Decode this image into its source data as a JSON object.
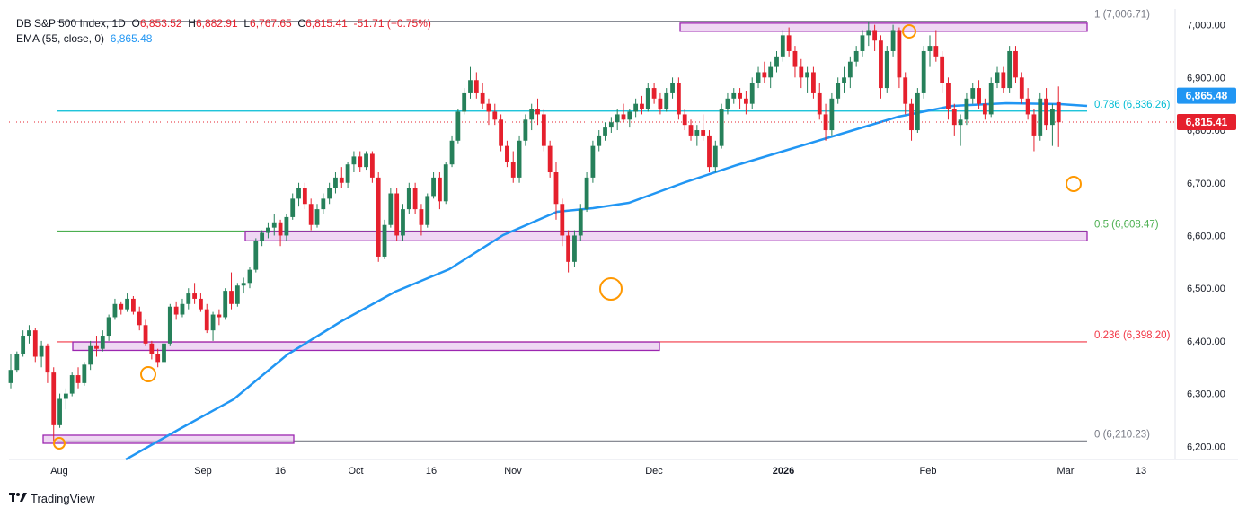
{
  "legend": {
    "symbol": "DB S&P 500 Index, 1D",
    "open_label": "O",
    "open": "6,853.52",
    "high_label": "H",
    "high": "6,882.91",
    "low_label": "L",
    "low": "6,767.65",
    "close_label": "C",
    "close": "6,815.41",
    "change": "-51.71 (−0.75%)",
    "ema_label": "EMA (55, close, 0)",
    "ema_value": "6,865.48"
  },
  "brand": {
    "name": "TradingView"
  },
  "colors": {
    "up": "#26805a",
    "down": "#e5202d",
    "ema": "#2196f3",
    "zone_fill": "#e8c8ee",
    "zone_stroke": "#9c27b0",
    "fib_0786": "#00bcd4",
    "fib_05": "#4caf50",
    "fib_0236": "#f23645",
    "fib_edge": "#787b86",
    "circle": "#ff9800"
  },
  "chart_data": {
    "type": "candlestick",
    "ylim": [
      6175,
      7030
    ],
    "y_ticks": [
      "6,200.00",
      "6,300.00",
      "6,400.00",
      "6,500.00",
      "6,600.00",
      "6,700.00",
      "6,800.00",
      "6,900.00",
      "7,000.00"
    ],
    "x_labels": [
      "Aug",
      "Sep",
      "16",
      "Oct",
      "16",
      "Nov",
      "Dec",
      "2026",
      "Feb",
      "Mar",
      "13"
    ],
    "current_price": {
      "value": 6815.41,
      "label": "6,815.41"
    },
    "ema": {
      "value": 6865.48,
      "label": "6,865.48"
    },
    "fib_levels": [
      {
        "ratio": 1,
        "price": 7006.71,
        "label": "1 (7,006.71)"
      },
      {
        "ratio": 0.786,
        "price": 6836.26,
        "label": "0.786 (6,836.26)"
      },
      {
        "ratio": 0.5,
        "price": 6608.47,
        "label": "0.5 (6,608.47)"
      },
      {
        "ratio": 0.236,
        "price": 6398.2,
        "label": "0.236 (6,398.20)"
      },
      {
        "ratio": 0,
        "price": 6210.23,
        "label": "0 (6,210.23)"
      }
    ],
    "zones": [
      {
        "price_top": 7003,
        "price_bottom": 6990
      },
      {
        "price_top": 6608,
        "price_bottom": 6590
      },
      {
        "price_top": 6398,
        "price_bottom": 6382
      },
      {
        "price_top": 6221,
        "price_bottom": 6210
      }
    ],
    "candles": [
      [
        6320,
        6375,
        6310,
        6345
      ],
      [
        6345,
        6380,
        6340,
        6375
      ],
      [
        6375,
        6420,
        6370,
        6410
      ],
      [
        6410,
        6430,
        6395,
        6420
      ],
      [
        6420,
        6425,
        6360,
        6370
      ],
      [
        6370,
        6400,
        6350,
        6390
      ],
      [
        6390,
        6395,
        6320,
        6340
      ],
      [
        6340,
        6350,
        6210,
        6240
      ],
      [
        6240,
        6300,
        6235,
        6290
      ],
      [
        6290,
        6310,
        6270,
        6300
      ],
      [
        6300,
        6340,
        6295,
        6335
      ],
      [
        6335,
        6350,
        6310,
        6320
      ],
      [
        6320,
        6360,
        6315,
        6355
      ],
      [
        6355,
        6400,
        6345,
        6390
      ],
      [
        6390,
        6410,
        6370,
        6385
      ],
      [
        6385,
        6420,
        6380,
        6410
      ],
      [
        6410,
        6450,
        6400,
        6445
      ],
      [
        6445,
        6480,
        6440,
        6470
      ],
      [
        6470,
        6475,
        6450,
        6460
      ],
      [
        6460,
        6490,
        6455,
        6480
      ],
      [
        6480,
        6485,
        6450,
        6455
      ],
      [
        6455,
        6465,
        6420,
        6430
      ],
      [
        6430,
        6440,
        6390,
        6395
      ],
      [
        6395,
        6400,
        6365,
        6375
      ],
      [
        6375,
        6385,
        6350,
        6360
      ],
      [
        6360,
        6400,
        6355,
        6395
      ],
      [
        6395,
        6470,
        6390,
        6465
      ],
      [
        6465,
        6475,
        6440,
        6450
      ],
      [
        6450,
        6480,
        6445,
        6470
      ],
      [
        6470,
        6500,
        6460,
        6490
      ],
      [
        6490,
        6510,
        6470,
        6480
      ],
      [
        6480,
        6490,
        6455,
        6460
      ],
      [
        6460,
        6470,
        6415,
        6420
      ],
      [
        6420,
        6455,
        6400,
        6450
      ],
      [
        6450,
        6460,
        6430,
        6445
      ],
      [
        6445,
        6500,
        6440,
        6495
      ],
      [
        6495,
        6530,
        6460,
        6470
      ],
      [
        6470,
        6510,
        6465,
        6505
      ],
      [
        6505,
        6520,
        6490,
        6510
      ],
      [
        6510,
        6540,
        6500,
        6535
      ],
      [
        6535,
        6595,
        6530,
        6590
      ],
      [
        6590,
        6610,
        6580,
        6605
      ],
      [
        6605,
        6625,
        6595,
        6615
      ],
      [
        6615,
        6640,
        6600,
        6625
      ],
      [
        6625,
        6630,
        6580,
        6600
      ],
      [
        6600,
        6640,
        6590,
        6635
      ],
      [
        6635,
        6680,
        6630,
        6670
      ],
      [
        6670,
        6700,
        6655,
        6690
      ],
      [
        6690,
        6700,
        6650,
        6660
      ],
      [
        6660,
        6670,
        6610,
        6620
      ],
      [
        6620,
        6660,
        6615,
        6650
      ],
      [
        6650,
        6680,
        6640,
        6670
      ],
      [
        6670,
        6700,
        6660,
        6690
      ],
      [
        6690,
        6720,
        6680,
        6710
      ],
      [
        6710,
        6730,
        6690,
        6700
      ],
      [
        6700,
        6740,
        6690,
        6735
      ],
      [
        6735,
        6760,
        6720,
        6750
      ],
      [
        6750,
        6760,
        6720,
        6730
      ],
      [
        6730,
        6760,
        6725,
        6755
      ],
      [
        6755,
        6760,
        6700,
        6710
      ],
      [
        6710,
        6720,
        6550,
        6560
      ],
      [
        6560,
        6630,
        6555,
        6620
      ],
      [
        6620,
        6690,
        6615,
        6680
      ],
      [
        6680,
        6690,
        6590,
        6600
      ],
      [
        6600,
        6660,
        6590,
        6650
      ],
      [
        6650,
        6700,
        6640,
        6690
      ],
      [
        6690,
        6700,
        6640,
        6650
      ],
      [
        6650,
        6660,
        6600,
        6620
      ],
      [
        6620,
        6680,
        6615,
        6675
      ],
      [
        6675,
        6720,
        6670,
        6710
      ],
      [
        6710,
        6720,
        6650,
        6665
      ],
      [
        6665,
        6740,
        6660,
        6735
      ],
      [
        6735,
        6790,
        6730,
        6780
      ],
      [
        6780,
        6840,
        6775,
        6835
      ],
      [
        6835,
        6880,
        6830,
        6870
      ],
      [
        6870,
        6920,
        6860,
        6895
      ],
      [
        6895,
        6910,
        6860,
        6870
      ],
      [
        6870,
        6890,
        6840,
        6850
      ],
      [
        6850,
        6860,
        6810,
        6835
      ],
      [
        6835,
        6850,
        6810,
        6820
      ],
      [
        6820,
        6830,
        6760,
        6770
      ],
      [
        6770,
        6780,
        6730,
        6740
      ],
      [
        6740,
        6760,
        6700,
        6710
      ],
      [
        6710,
        6790,
        6700,
        6780
      ],
      [
        6780,
        6830,
        6770,
        6820
      ],
      [
        6820,
        6850,
        6800,
        6840
      ],
      [
        6840,
        6860,
        6810,
        6830
      ],
      [
        6830,
        6840,
        6760,
        6770
      ],
      [
        6770,
        6780,
        6710,
        6720
      ],
      [
        6720,
        6740,
        6630,
        6660
      ],
      [
        6660,
        6670,
        6580,
        6600
      ],
      [
        6600,
        6610,
        6530,
        6550
      ],
      [
        6550,
        6610,
        6540,
        6600
      ],
      [
        6600,
        6660,
        6590,
        6650
      ],
      [
        6650,
        6720,
        6645,
        6710
      ],
      [
        6710,
        6780,
        6700,
        6770
      ],
      [
        6770,
        6800,
        6760,
        6790
      ],
      [
        6790,
        6815,
        6780,
        6805
      ],
      [
        6805,
        6825,
        6795,
        6815
      ],
      [
        6815,
        6840,
        6800,
        6830
      ],
      [
        6830,
        6850,
        6815,
        6820
      ],
      [
        6820,
        6840,
        6805,
        6835
      ],
      [
        6835,
        6860,
        6825,
        6850
      ],
      [
        6850,
        6865,
        6830,
        6840
      ],
      [
        6840,
        6890,
        6835,
        6880
      ],
      [
        6880,
        6890,
        6850,
        6860
      ],
      [
        6860,
        6870,
        6830,
        6840
      ],
      [
        6840,
        6880,
        6835,
        6870
      ],
      [
        6870,
        6900,
        6860,
        6890
      ],
      [
        6890,
        6900,
        6820,
        6830
      ],
      [
        6830,
        6840,
        6800,
        6810
      ],
      [
        6810,
        6820,
        6780,
        6790
      ],
      [
        6790,
        6810,
        6770,
        6800
      ],
      [
        6800,
        6830,
        6780,
        6790
      ],
      [
        6790,
        6800,
        6720,
        6730
      ],
      [
        6730,
        6780,
        6720,
        6770
      ],
      [
        6770,
        6850,
        6765,
        6840
      ],
      [
        6840,
        6870,
        6830,
        6860
      ],
      [
        6860,
        6880,
        6850,
        6870
      ],
      [
        6870,
        6880,
        6840,
        6860
      ],
      [
        6860,
        6875,
        6830,
        6850
      ],
      [
        6850,
        6900,
        6840,
        6890
      ],
      [
        6890,
        6920,
        6880,
        6910
      ],
      [
        6910,
        6930,
        6890,
        6900
      ],
      [
        6900,
        6930,
        6880,
        6920
      ],
      [
        6920,
        6950,
        6910,
        6940
      ],
      [
        6940,
        6990,
        6930,
        6980
      ],
      [
        6980,
        6995,
        6940,
        6950
      ],
      [
        6950,
        6960,
        6900,
        6920
      ],
      [
        6920,
        6935,
        6880,
        6900
      ],
      [
        6900,
        6920,
        6870,
        6910
      ],
      [
        6910,
        6920,
        6860,
        6870
      ],
      [
        6870,
        6890,
        6820,
        6830
      ],
      [
        6830,
        6850,
        6780,
        6800
      ],
      [
        6800,
        6870,
        6790,
        6860
      ],
      [
        6860,
        6900,
        6850,
        6890
      ],
      [
        6890,
        6920,
        6870,
        6900
      ],
      [
        6900,
        6940,
        6880,
        6930
      ],
      [
        6930,
        6960,
        6920,
        6950
      ],
      [
        6950,
        6990,
        6940,
        6980
      ],
      [
        6980,
        7005,
        6960,
        6990
      ],
      [
        6990,
        7000,
        6950,
        6970
      ],
      [
        6970,
        6980,
        6860,
        6880
      ],
      [
        6880,
        6960,
        6870,
        6950
      ],
      [
        6950,
        7000,
        6940,
        6990
      ],
      [
        6990,
        6995,
        6880,
        6900
      ],
      [
        6900,
        6910,
        6830,
        6850
      ],
      [
        6850,
        6860,
        6780,
        6800
      ],
      [
        6800,
        6880,
        6795,
        6870
      ],
      [
        6870,
        6960,
        6860,
        6950
      ],
      [
        6950,
        6980,
        6920,
        6960
      ],
      [
        6960,
        6990,
        6930,
        6940
      ],
      [
        6940,
        6950,
        6870,
        6890
      ],
      [
        6890,
        6900,
        6820,
        6840
      ],
      [
        6840,
        6850,
        6790,
        6810
      ],
      [
        6810,
        6830,
        6770,
        6820
      ],
      [
        6820,
        6870,
        6810,
        6860
      ],
      [
        6860,
        6890,
        6850,
        6880
      ],
      [
        6880,
        6895,
        6840,
        6850
      ],
      [
        6850,
        6860,
        6820,
        6830
      ],
      [
        6830,
        6900,
        6825,
        6890
      ],
      [
        6890,
        6920,
        6880,
        6910
      ],
      [
        6910,
        6920,
        6870,
        6880
      ],
      [
        6880,
        6960,
        6870,
        6950
      ],
      [
        6950,
        6960,
        6890,
        6900
      ],
      [
        6900,
        6910,
        6850,
        6860
      ],
      [
        6860,
        6880,
        6820,
        6830
      ],
      [
        6830,
        6840,
        6760,
        6790
      ],
      [
        6790,
        6870,
        6780,
        6860
      ],
      [
        6860,
        6880,
        6800,
        6810
      ],
      [
        6810,
        6850,
        6770,
        6840
      ],
      [
        6853,
        6883,
        6768,
        6815
      ]
    ]
  }
}
